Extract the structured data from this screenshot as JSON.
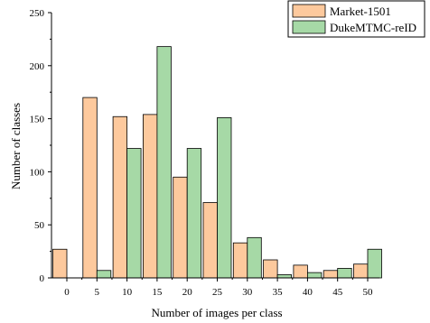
{
  "chart_data": {
    "type": "bar",
    "xlabel": "Number of images per class",
    "ylabel": "Number of classes",
    "ylim": [
      0,
      250
    ],
    "yticks": [
      0,
      50,
      100,
      150,
      200,
      250
    ],
    "categories": [
      "0",
      "5",
      "10",
      "15",
      "20",
      "25",
      "30",
      "35",
      "40",
      "45",
      "50"
    ],
    "series": [
      {
        "name": "Market-1501",
        "color": "#fdc99d",
        "values": [
          27,
          170,
          152,
          154,
          95,
          71,
          33,
          17,
          12,
          7,
          13
        ]
      },
      {
        "name": "DukeMTMC-reID",
        "color": "#a6d9a6",
        "values": [
          0,
          7,
          122,
          218,
          122,
          151,
          38,
          3,
          5,
          9,
          27
        ]
      }
    ],
    "legend_position": "top-right",
    "grid": false
  }
}
